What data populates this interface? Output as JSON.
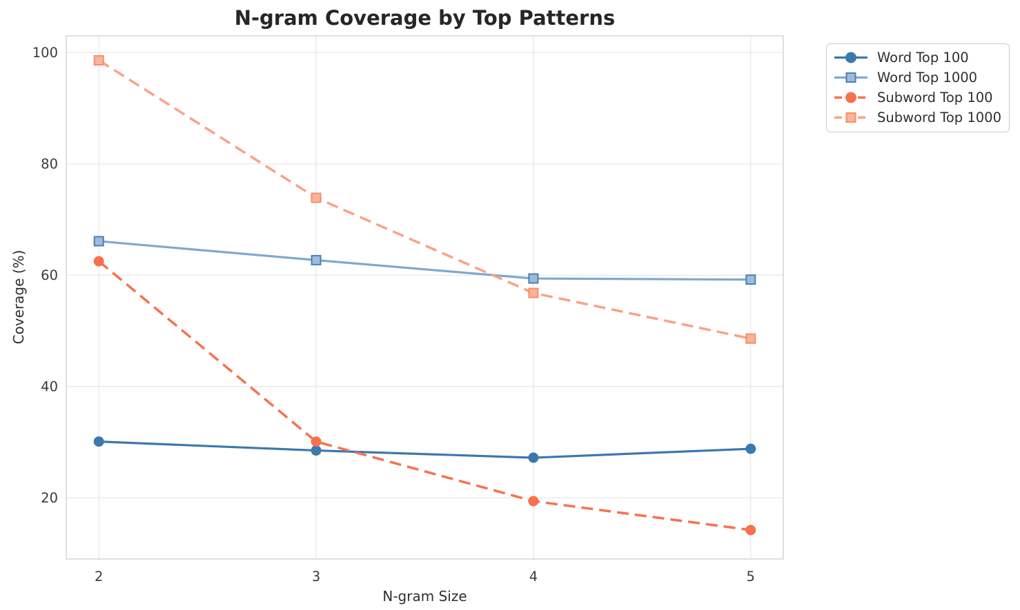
{
  "chart_data": {
    "type": "line",
    "title": "N-gram Coverage by Top Patterns",
    "xlabel": "N-gram Size",
    "ylabel": "Coverage (%)",
    "x": [
      2,
      3,
      4,
      5
    ],
    "xticks": [
      2,
      3,
      4,
      5
    ],
    "yticks": [
      20,
      40,
      60,
      80,
      100
    ],
    "xlim": [
      1.85,
      5.15
    ],
    "ylim": [
      9,
      103
    ],
    "grid": true,
    "legend_position": "outside-upper-right",
    "series": [
      {
        "name": "Word Top 100",
        "values": [
          30.1,
          28.5,
          27.2,
          28.8
        ],
        "color": "#3B78AE",
        "marker": "circle",
        "marker_fill": "#3B78AE",
        "marker_edge": "#3B78AE",
        "line_style": "solid"
      },
      {
        "name": "Word Top 1000",
        "values": [
          66.1,
          62.7,
          59.4,
          59.2
        ],
        "color": "#7FA8CF",
        "marker": "square",
        "marker_fill": "#9DBBDA",
        "marker_edge": "#4D80B2",
        "line_style": "solid"
      },
      {
        "name": "Subword Top 100",
        "values": [
          62.5,
          30.1,
          19.4,
          14.2
        ],
        "color": "#F8714C",
        "marker": "circle",
        "marker_fill": "#F8714C",
        "marker_edge": "#F8714C",
        "line_style": "dashed"
      },
      {
        "name": "Subword Top 1000",
        "values": [
          98.6,
          73.9,
          56.8,
          48.6
        ],
        "color": "#FBA284",
        "marker": "square",
        "marker_fill": "#FBB49B",
        "marker_edge": "#F98D68",
        "line_style": "dashed"
      }
    ]
  },
  "colors": {
    "background": "#FFFFFF",
    "grid": "#E9E9E9",
    "frame": "#D8D8D8",
    "tick_text": "#3A3A3A",
    "title_text": "#262626",
    "legend_border": "#CCCCCC"
  }
}
